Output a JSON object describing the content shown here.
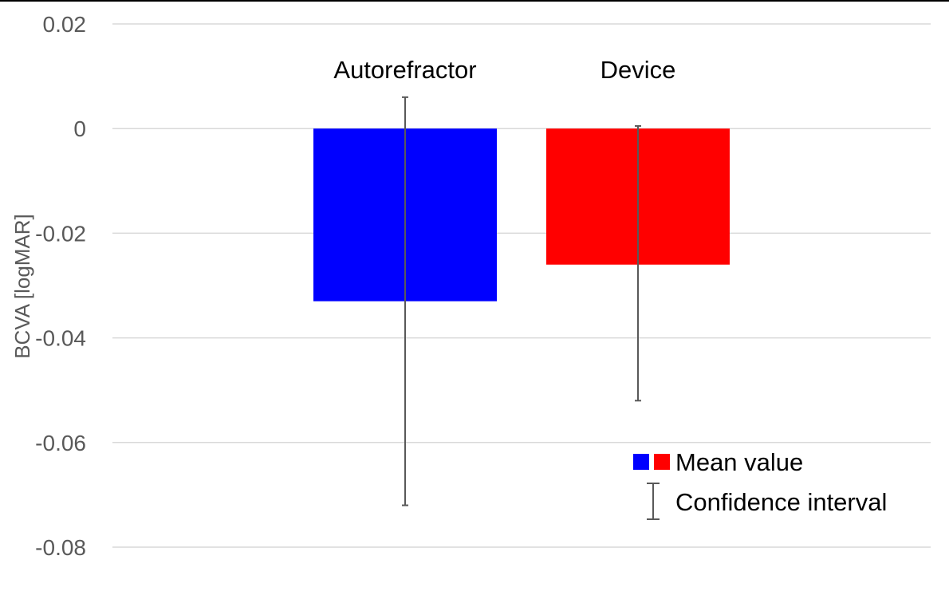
{
  "chart_data": {
    "type": "bar",
    "title": "",
    "xlabel": "",
    "ylabel": "BCVA [logMAR]",
    "ylim": [
      -0.08,
      0.02
    ],
    "yticks": [
      0.02,
      0,
      -0.02,
      -0.04,
      -0.06,
      -0.08
    ],
    "ytick_labels": [
      "0.02",
      "0",
      "-0.02",
      "-0.04",
      "-0.06",
      "-0.08"
    ],
    "grid": true,
    "categories": [
      "Autorefractor",
      "Device"
    ],
    "values": [
      -0.033,
      -0.026
    ],
    "ci_upper": [
      0.006,
      0.0005
    ],
    "ci_lower": [
      -0.072,
      -0.052
    ],
    "bar_colors": [
      "#0000ff",
      "#ff0000"
    ],
    "category_label_position": "top",
    "legend": {
      "placement": "bottom-right",
      "mean_label": "Mean value",
      "ci_label": "Confidence interval"
    }
  }
}
